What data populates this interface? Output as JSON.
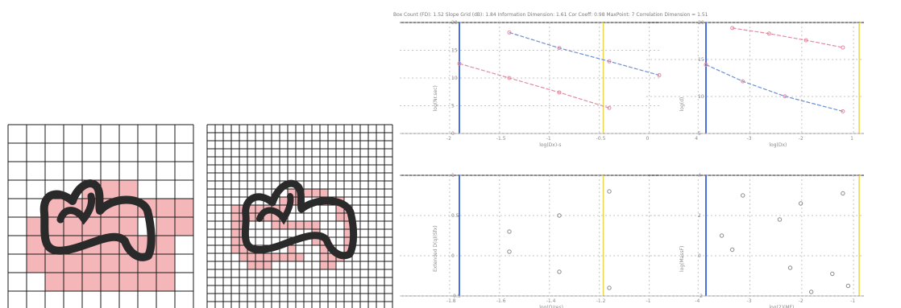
{
  "header_text": "Box Count (FD): 1.52   Slope Grid (dB): 1.84   Information Dimension: 1.61   Cor Coeff: 0.98   MaxPoint: 7   Correlation Dimension = 1.51",
  "colors": {
    "cell_fill": "#f4b6b8",
    "grid_line": "#1a1a1a",
    "curve": "#2a2a2a",
    "series_blue": "#6b8fd6",
    "series_pink": "#e58aa0",
    "axis_blue": "#4a6fe0",
    "axis_yellow": "#e9d84a"
  },
  "icons": {
    "shape": "blob-curve-icon"
  },
  "coarse_grid": {
    "cells": 10,
    "occupied": [
      [
        4,
        2
      ],
      [
        4,
        3
      ],
      [
        4,
        4
      ],
      [
        4,
        5
      ],
      [
        4,
        6
      ],
      [
        4,
        7
      ],
      [
        4,
        8
      ],
      [
        4,
        9
      ],
      [
        5,
        1
      ],
      [
        5,
        2
      ],
      [
        5,
        3
      ],
      [
        5,
        4
      ],
      [
        5,
        5
      ],
      [
        5,
        6
      ],
      [
        5,
        8
      ],
      [
        5,
        9
      ],
      [
        6,
        1
      ],
      [
        6,
        2
      ],
      [
        6,
        3
      ],
      [
        6,
        4
      ],
      [
        6,
        5
      ],
      [
        6,
        6
      ],
      [
        6,
        7
      ],
      [
        6,
        8
      ],
      [
        7,
        1
      ],
      [
        7,
        2
      ],
      [
        7,
        3
      ],
      [
        7,
        4
      ],
      [
        7,
        5
      ],
      [
        7,
        6
      ],
      [
        7,
        7
      ],
      [
        7,
        8
      ],
      [
        8,
        2
      ],
      [
        8,
        3
      ],
      [
        8,
        4
      ],
      [
        8,
        5
      ],
      [
        8,
        6
      ],
      [
        8,
        7
      ],
      [
        8,
        8
      ],
      [
        3,
        4
      ],
      [
        3,
        5
      ],
      [
        3,
        6
      ]
    ]
  },
  "fine_grid": {
    "cells": 23,
    "occupied": [
      [
        8,
        10
      ],
      [
        8,
        11
      ],
      [
        8,
        12
      ],
      [
        8,
        13
      ],
      [
        8,
        14
      ],
      [
        9,
        9
      ],
      [
        9,
        10
      ],
      [
        9,
        11
      ],
      [
        9,
        14
      ],
      [
        9,
        15
      ],
      [
        9,
        16
      ],
      [
        10,
        3
      ],
      [
        10,
        4
      ],
      [
        10,
        5
      ],
      [
        10,
        6
      ],
      [
        10,
        7
      ],
      [
        10,
        8
      ],
      [
        10,
        9
      ],
      [
        10,
        16
      ],
      [
        10,
        17
      ],
      [
        11,
        3
      ],
      [
        11,
        4
      ],
      [
        11,
        5
      ],
      [
        11,
        6
      ],
      [
        11,
        7
      ],
      [
        11,
        8
      ],
      [
        11,
        16
      ],
      [
        11,
        17
      ],
      [
        12,
        3
      ],
      [
        12,
        4
      ],
      [
        12,
        8
      ],
      [
        12,
        9
      ],
      [
        12,
        10
      ],
      [
        12,
        11
      ],
      [
        12,
        12
      ],
      [
        12,
        13
      ],
      [
        12,
        17
      ],
      [
        13,
        3
      ],
      [
        13,
        4
      ],
      [
        13,
        13
      ],
      [
        13,
        17
      ],
      [
        14,
        3
      ],
      [
        14,
        4
      ],
      [
        14,
        13
      ],
      [
        14,
        14
      ],
      [
        14,
        17
      ],
      [
        15,
        3
      ],
      [
        15,
        4
      ],
      [
        15,
        5
      ],
      [
        15,
        10
      ],
      [
        15,
        14
      ],
      [
        15,
        17
      ],
      [
        16,
        4
      ],
      [
        16,
        5
      ],
      [
        16,
        6
      ],
      [
        16,
        7
      ],
      [
        16,
        8
      ],
      [
        16,
        9
      ],
      [
        16,
        10
      ],
      [
        16,
        11
      ],
      [
        16,
        14
      ],
      [
        16,
        15
      ],
      [
        16,
        16
      ],
      [
        17,
        5
      ],
      [
        17,
        6
      ],
      [
        17,
        7
      ],
      [
        17,
        14
      ],
      [
        17,
        15
      ]
    ]
  },
  "chart_data": [
    {
      "type": "line",
      "ylabel": "log(Nr.sec)",
      "xlabel": "log(Dx)-s",
      "x_ticks": [
        "-2",
        "-1.5",
        "-1",
        "-0.5",
        "0"
      ],
      "y_ticks": [
        "20",
        "15",
        "10",
        "5",
        "0"
      ],
      "xlim": [
        -2,
        0
      ],
      "ylim": [
        0,
        20
      ],
      "series": [
        {
          "values": [
            [
              -1.5,
              18.2
            ],
            [
              -1.0,
              15.4
            ],
            [
              -0.5,
              13.0
            ],
            [
              0,
              10.5
            ]
          ]
        },
        {
          "values": [
            [
              -2.0,
              12.6
            ],
            [
              -1.5,
              10.0
            ],
            [
              -1.0,
              7.4
            ],
            [
              -0.5,
              4.6
            ]
          ]
        }
      ]
    },
    {
      "type": "line",
      "ylabel": "log(d)",
      "xlabel": "log(Dx)",
      "x_ticks": [
        "4",
        "-3",
        "-2",
        "1"
      ],
      "y_ticks": [
        "20",
        "15",
        "10",
        "5"
      ],
      "xlim": [
        -4,
        -1
      ],
      "ylim": [
        0,
        20
      ],
      "series": [
        {
          "values": [
            [
              -4.0,
              12.4
            ],
            [
              -3.3,
              9.4
            ],
            [
              -2.5,
              6.7
            ],
            [
              -1.4,
              4.0
            ]
          ]
        },
        {
          "values": [
            [
              -3.5,
              19.0
            ],
            [
              -2.8,
              18.0
            ],
            [
              -2.1,
              16.8
            ],
            [
              -1.4,
              15.5
            ]
          ]
        }
      ]
    },
    {
      "type": "scatter",
      "ylabel": "Extended D(q)(Sfx)",
      "xlabel": "log(Q/res)",
      "x_ticks": [
        "-1.8",
        "-1.6",
        "-1.4",
        "-1.2",
        "-1"
      ],
      "y_ticks": [
        "1",
        "0.5",
        "0",
        "-0.5"
      ],
      "xlim": [
        -1.8,
        -1
      ],
      "ylim": [
        -0.5,
        1
      ],
      "values": [
        [
          -1.6,
          0.3
        ],
        [
          -1.4,
          0.5
        ],
        [
          -1.2,
          0.8
        ],
        [
          -1.6,
          0.05
        ],
        [
          -1.4,
          -0.2
        ],
        [
          -1.2,
          -0.4
        ]
      ]
    },
    {
      "type": "scatter",
      "ylabel": "log(MassF)",
      "xlabel": "log(2)(MF)",
      "x_ticks": [
        "-4",
        "-3",
        "-2",
        "-1"
      ],
      "y_ticks": [
        "4",
        "2",
        "0",
        "-2"
      ],
      "xlim": [
        -4,
        -1
      ],
      "ylim": [
        -2,
        4
      ],
      "values": [
        [
          -3.7,
          1.0
        ],
        [
          -3.3,
          3.0
        ],
        [
          -2.6,
          1.8
        ],
        [
          -2.2,
          2.6
        ],
        [
          -1.4,
          3.1
        ],
        [
          -3.5,
          0.3
        ],
        [
          -2.4,
          -0.6
        ],
        [
          -1.6,
          -0.9
        ],
        [
          -1.3,
          -1.5
        ],
        [
          -2.0,
          -1.8
        ]
      ]
    }
  ]
}
